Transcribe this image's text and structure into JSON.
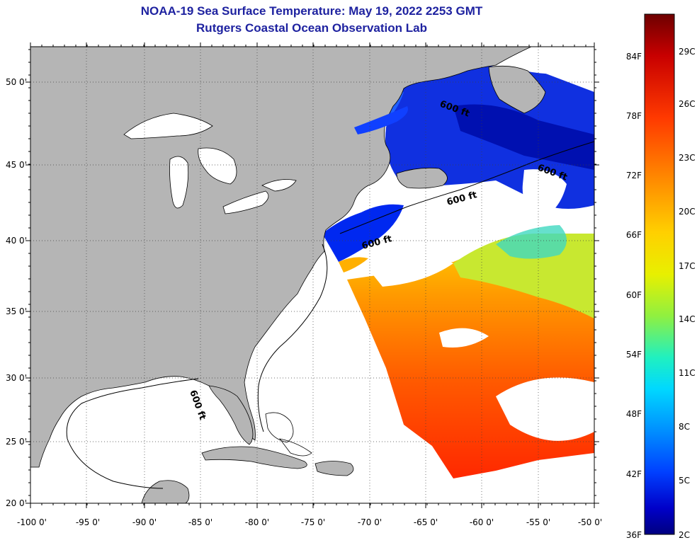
{
  "title": "NOAA-19 Sea Surface Temperature:  May 19, 2022 2253 GMT",
  "subtitle": "Rutgers Coastal Ocean Observation Lab",
  "map": {
    "lon_ticks": [
      "-100 0'",
      "-95 0'",
      "-90 0'",
      "-85 0'",
      "-80 0'",
      "-75 0'",
      "-70 0'",
      "-65 0'",
      "-60 0'",
      "-55 0'",
      "-50 0'"
    ],
    "lat_ticks": [
      "50 0'",
      "45 0'",
      "40 0'",
      "35 0'",
      "30 0'",
      "25 0'",
      "20 0'"
    ],
    "contour_labels": [
      "600 ft",
      "600 ft",
      "600 ft",
      "600 ft",
      "600 ft"
    ],
    "colors": {
      "land": "#b5b5b5",
      "cloud": "#ffffff",
      "coast": "#000000"
    }
  },
  "colorbar": {
    "fahrenheit": [
      "84F",
      "78F",
      "72F",
      "66F",
      "60F",
      "54F",
      "48F",
      "42F",
      "36F"
    ],
    "celsius": [
      "29C",
      "26C",
      "23C",
      "20C",
      "17C",
      "14C",
      "11C",
      "8C",
      "5C",
      "2C"
    ],
    "colors": [
      "#7a0000",
      "#d00000",
      "#ff3000",
      "#ff7a00",
      "#ffc000",
      "#f0f000",
      "#90f040",
      "#20f0c0",
      "#00d0ff",
      "#0090ff",
      "#0040ff",
      "#0000c8",
      "#000090"
    ]
  }
}
